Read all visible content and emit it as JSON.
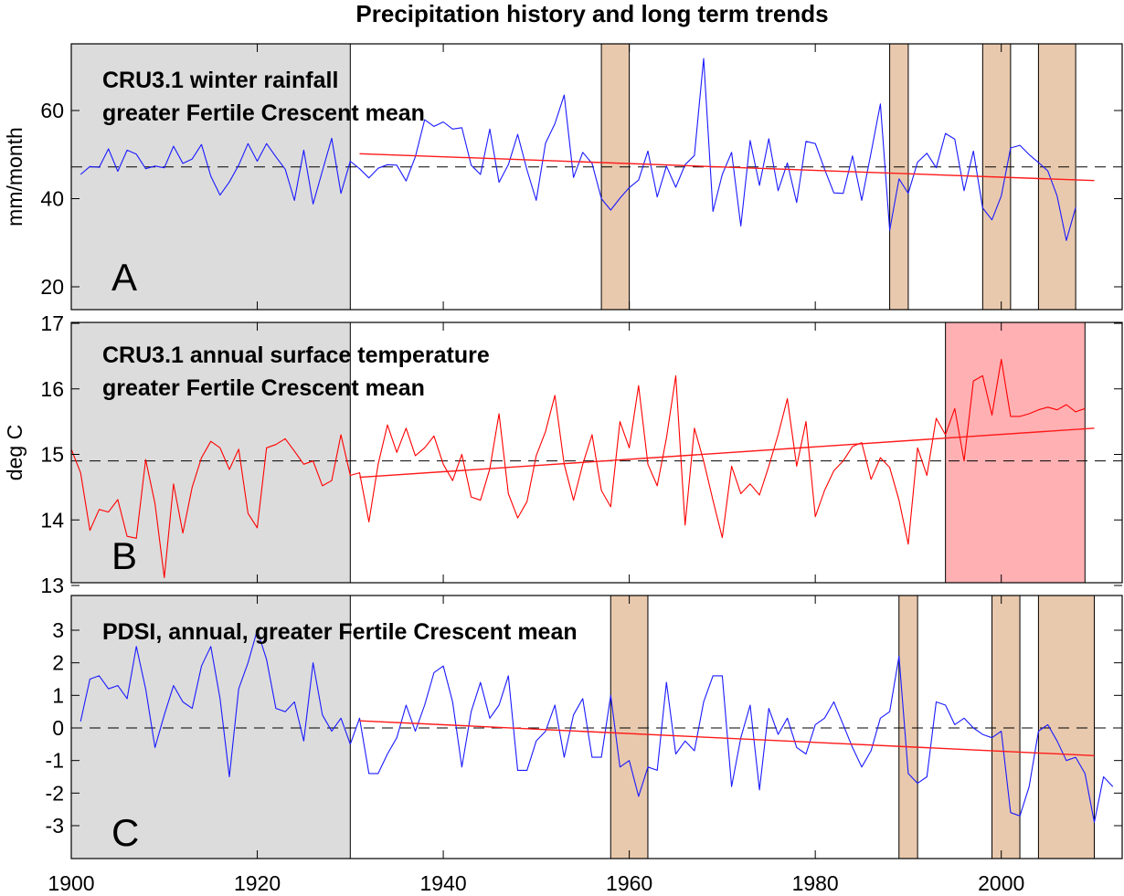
{
  "figure": {
    "title": "Precipitation history and long term trends",
    "x_ticks": [
      1900,
      1920,
      1940,
      1960,
      1980,
      2000
    ],
    "xlim": [
      1900,
      2013
    ]
  },
  "colors": {
    "shade_gray": "#dcdcdc",
    "band_tan": "#e9c9ad",
    "band_pink": "#ffb0b3",
    "series_blue": "#1a1aff",
    "series_red": "#ff0000",
    "trend_red": "#ff1a1a"
  },
  "chart_data": [
    {
      "id": "A",
      "type": "line",
      "letter": "A",
      "annotation": [
        "CRU3.1 winter rainfall",
        "greater Fertile Crescent mean"
      ],
      "ylabel": "mm/month",
      "ylim": [
        15,
        75
      ],
      "yticks": [
        20,
        40,
        60
      ],
      "yticklabels": [
        "20",
        "40",
        "60"
      ],
      "mean_line": 47.2,
      "gray_period": [
        1900,
        1930
      ],
      "bands": [
        [
          1957,
          1960
        ],
        [
          1988,
          1990
        ],
        [
          1998,
          2001
        ],
        [
          2004,
          2008
        ]
      ],
      "band_color": "tan",
      "series_color": "blue",
      "trend": {
        "x": [
          1931,
          2010
        ],
        "y": [
          50.2,
          44.1
        ]
      },
      "x_start": 1901,
      "values": [
        45.5,
        47.3,
        47.1,
        51.3,
        46.2,
        51.0,
        50.1,
        46.8,
        47.4,
        47.0,
        51.9,
        48.0,
        49.0,
        52.3,
        45.1,
        40.8,
        43.8,
        47.6,
        52.5,
        48.5,
        52.5,
        49.5,
        46.7,
        39.6,
        51.0,
        38.8,
        46.3,
        53.7,
        41.2,
        48.5,
        46.8,
        44.7,
        46.9,
        47.7,
        47.6,
        44.0,
        49.5,
        57.9,
        56.4,
        57.4,
        55.8,
        56.1,
        47.6,
        45.5,
        55.8,
        43.7,
        47.7,
        54.6,
        46.5,
        39.6,
        52.6,
        57.0,
        63.5,
        44.8,
        50.5,
        48.0,
        40.0,
        37.4,
        40.1,
        42.5,
        44.2,
        50.8,
        40.4,
        47.4,
        42.6,
        47.7,
        49.8,
        71.8,
        37.1,
        45.5,
        50.5,
        33.8,
        53.2,
        43.0,
        53.6,
        41.8,
        48.1,
        39.1,
        53.0,
        52.5,
        46.7,
        41.3,
        41.2,
        49.7,
        39.6,
        50.4,
        61.5,
        32.8,
        44.5,
        41.2,
        48.3,
        50.3,
        47.0,
        54.8,
        53.5,
        41.8,
        50.8,
        37.9,
        35.2,
        40.6,
        51.5,
        52.1,
        50.0,
        48.2,
        46.3,
        40.6,
        30.5,
        38.0
      ]
    },
    {
      "id": "B",
      "type": "line",
      "letter": "B",
      "annotation": [
        "CRU3.1 annual surface temperature",
        "greater Fertile Crescent mean"
      ],
      "ylabel": "deg C",
      "ylim": [
        13,
        17
      ],
      "yticks": [
        13,
        14,
        15,
        16,
        17
      ],
      "yticklabels": [
        "13",
        "14",
        "15",
        "16",
        "17"
      ],
      "mean_line": 14.9,
      "gray_period": [
        1900,
        1930
      ],
      "bands": [
        [
          1994,
          2009
        ]
      ],
      "band_color": "pink",
      "series_color": "red",
      "trend": {
        "x": [
          1931,
          2010
        ],
        "y": [
          14.65,
          15.4
        ]
      },
      "x_start": 1900,
      "values": [
        15.08,
        14.72,
        13.84,
        14.16,
        14.12,
        14.31,
        13.75,
        13.72,
        14.92,
        14.25,
        13.12,
        14.55,
        13.8,
        14.5,
        14.95,
        15.2,
        15.1,
        14.77,
        15.08,
        14.1,
        13.88,
        15.1,
        15.15,
        15.24,
        15.05,
        14.85,
        14.9,
        14.52,
        14.6,
        15.3,
        14.68,
        14.72,
        13.97,
        14.85,
        15.45,
        15.03,
        15.4,
        14.98,
        15.1,
        15.28,
        14.85,
        14.6,
        15.0,
        14.35,
        14.3,
        14.78,
        15.62,
        14.4,
        14.03,
        14.28,
        14.98,
        15.35,
        15.9,
        14.85,
        14.3,
        14.85,
        15.3,
        14.45,
        14.2,
        15.5,
        15.1,
        16.05,
        14.85,
        14.52,
        15.25,
        16.2,
        13.92,
        15.4,
        14.9,
        14.3,
        13.73,
        14.82,
        14.4,
        14.55,
        14.38,
        14.82,
        15.3,
        15.85,
        14.82,
        15.5,
        14.05,
        14.45,
        14.75,
        14.9,
        15.12,
        15.18,
        14.62,
        14.95,
        14.8,
        14.3,
        13.63,
        15.1,
        14.68,
        15.55,
        15.3,
        15.7,
        14.9,
        16.12,
        16.2,
        15.6,
        16.45,
        15.58,
        15.58,
        15.62,
        15.68,
        15.72,
        15.68,
        15.76,
        15.65,
        15.7
      ]
    },
    {
      "id": "C",
      "type": "line",
      "letter": "C",
      "annotation": [
        "PDSI, annual, greater Fertile Crescent mean"
      ],
      "ylabel": "",
      "ylim": [
        -4,
        4
      ],
      "yticks": [
        -3,
        -2,
        -1,
        0,
        1,
        2,
        3
      ],
      "yticklabels": [
        "-3",
        "-2",
        "-1",
        "0",
        "1",
        "2",
        "3"
      ],
      "mean_line": 0,
      "gray_period": [
        1900,
        1930
      ],
      "bands": [
        [
          1958,
          1962
        ],
        [
          1989,
          1991
        ],
        [
          1999,
          2002
        ],
        [
          2004,
          2010
        ]
      ],
      "band_color": "tan",
      "series_color": "blue",
      "trend": {
        "x": [
          1931,
          2010
        ],
        "y": [
          0.22,
          -0.85
        ]
      },
      "x_start": 1901,
      "values": [
        0.2,
        1.5,
        1.6,
        1.2,
        1.3,
        0.9,
        2.5,
        1.2,
        -0.6,
        0.4,
        1.3,
        0.8,
        0.6,
        1.9,
        2.5,
        0.9,
        -1.5,
        1.2,
        2.0,
        3.0,
        2.1,
        0.6,
        0.5,
        0.8,
        -0.4,
        2.0,
        0.4,
        -0.1,
        0.3,
        -0.5,
        0.3,
        -1.4,
        -1.4,
        -0.8,
        -0.3,
        0.7,
        -0.1,
        0.7,
        1.7,
        1.9,
        0.8,
        -1.2,
        0.5,
        1.4,
        0.3,
        0.7,
        1.6,
        -1.3,
        -1.3,
        -0.4,
        -0.1,
        0.7,
        -0.9,
        0.4,
        0.9,
        -0.9,
        -0.9,
        1.0,
        -1.2,
        -1.0,
        -2.1,
        -1.2,
        -1.3,
        1.4,
        -0.8,
        -0.4,
        -0.7,
        0.8,
        1.6,
        1.6,
        -1.8,
        -0.3,
        0.7,
        -1.9,
        0.6,
        -0.2,
        0.3,
        -0.6,
        -0.8,
        0.1,
        0.3,
        0.8,
        0.1,
        -0.6,
        -1.2,
        -0.7,
        0.3,
        0.5,
        2.2,
        -1.4,
        -1.7,
        -1.5,
        0.8,
        0.7,
        0.1,
        0.3,
        0.0,
        -0.2,
        -0.3,
        -0.1,
        -2.6,
        -2.7,
        -1.8,
        -0.1,
        0.1,
        -0.4,
        -1.0,
        -0.9,
        -1.4,
        -2.9,
        -1.5,
        -1.8
      ]
    }
  ]
}
